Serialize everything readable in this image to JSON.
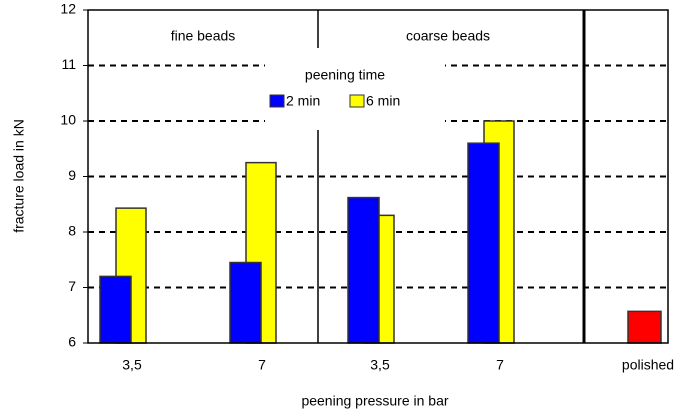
{
  "chart_data": {
    "type": "bar",
    "y_label": "fracture load in kN",
    "x_label": "peening pressure in bar",
    "legend_title": "peening time",
    "group_labels": [
      "fine beads",
      "coarse beads"
    ],
    "categories": [
      "3,5",
      "7",
      "3,5",
      "7",
      "polished"
    ],
    "series": [
      {
        "name": "2 min",
        "color": "#0000ff",
        "values": [
          7.2,
          7.45,
          8.62,
          9.6,
          null
        ]
      },
      {
        "name": "6 min",
        "color": "#ffff00",
        "values": [
          8.43,
          9.25,
          8.3,
          10.0,
          null
        ]
      }
    ],
    "polished_value": 6.57,
    "polished_color": "#ff0000",
    "ylim": [
      6,
      12
    ],
    "yticks": [
      6,
      7,
      8,
      9,
      10,
      11,
      12
    ],
    "grid": true
  }
}
